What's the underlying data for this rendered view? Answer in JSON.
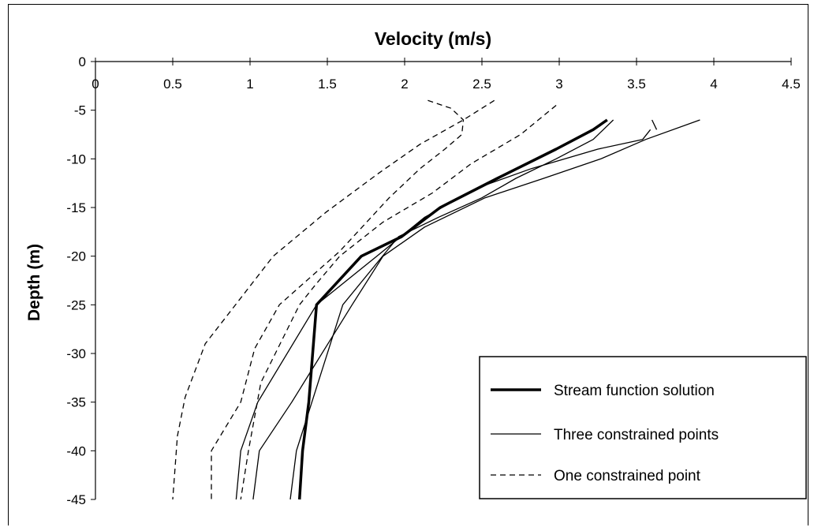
{
  "chart_data": {
    "type": "line",
    "title": "Velocity (m/s)",
    "xlabel": "",
    "ylabel": "Depth (m)",
    "xlim": [
      0,
      4.5
    ],
    "ylim": [
      -45,
      0
    ],
    "x_ticks": [
      "0",
      "0.5",
      "1",
      "1.5",
      "2",
      "2.5",
      "3",
      "3.5",
      "4",
      "4.5"
    ],
    "y_ticks": [
      "0",
      "-5",
      "-10",
      "-15",
      "-20",
      "-25",
      "-30",
      "-35",
      "-40",
      "-45"
    ],
    "x_axis_position": "top",
    "grid": false,
    "legend_position": "bottom-right",
    "legend": [
      {
        "label": "Stream function solution",
        "style": "thick-solid"
      },
      {
        "label": "Three constrained points",
        "style": "thin-solid"
      },
      {
        "label": "One constrained point",
        "style": "dashed"
      }
    ],
    "series": [
      {
        "style": "thick-solid",
        "color": "#000000",
        "x": [
          3.31,
          3.22,
          2.98,
          2.6,
          2.23,
          1.98,
          1.72,
          1.43,
          1.38,
          1.34,
          1.32
        ],
        "y": [
          -6,
          -7,
          -9,
          -12,
          -15,
          -18,
          -20,
          -25,
          -35,
          -40,
          -45
        ]
      },
      {
        "style": "thin-solid",
        "color": "#000000",
        "x": [
          3.35,
          3.22,
          2.98,
          2.72,
          2.5,
          2.22,
          1.96,
          1.6,
          1.4,
          1.3,
          1.26
        ],
        "y": [
          -6,
          -8,
          -10,
          -12,
          -14,
          -16,
          -18,
          -25,
          -35,
          -40,
          -45
        ]
      },
      {
        "style": "thin-solid",
        "color": "#000000",
        "x": [
          3.91,
          3.56,
          3.27,
          2.9,
          2.52,
          2.13,
          1.86,
          1.66,
          1.27,
          1.06,
          1.02
        ],
        "y": [
          -6,
          -8,
          -10,
          -12,
          -14,
          -17,
          -20,
          -25,
          -35,
          -40,
          -45
        ]
      },
      {
        "style": "thin-solid",
        "color": "#000000",
        "x": [
          3.59,
          3.54,
          3.25,
          2.82,
          2.47,
          2.13,
          1.82,
          1.43,
          1.05,
          0.94,
          0.91
        ],
        "y": [
          -7,
          -8,
          -9,
          -11,
          -13,
          -16,
          -20,
          -25,
          -35,
          -40,
          -45
        ]
      },
      {
        "style": "dashed",
        "color": "#000000",
        "x": [
          2.58,
          2.38,
          2.1,
          1.83,
          1.49,
          1.15,
          0.93,
          0.71,
          0.58,
          0.53,
          0.5
        ],
        "y": [
          -4,
          -6,
          -8.5,
          -11.5,
          -15.5,
          -20,
          -24.5,
          -29,
          -34.5,
          -38.5,
          -45
        ]
      },
      {
        "style": "dashed",
        "color": "#000000",
        "x": [
          2.98,
          2.75,
          2.43,
          2.18,
          1.86,
          1.58,
          1.42,
          1.32,
          1.07,
          0.99,
          0.94
        ],
        "y": [
          -4.5,
          -7.5,
          -10.5,
          -13.5,
          -16.5,
          -20,
          -23,
          -25,
          -33,
          -40,
          -45
        ]
      },
      {
        "style": "dashed",
        "color": "#000000",
        "x": [
          2.15,
          2.3,
          2.38,
          2.37,
          2.26,
          2.1,
          1.9,
          1.58,
          1.19,
          1.03,
          0.94,
          0.75,
          0.75
        ],
        "y": [
          -4,
          -4.8,
          -6,
          -7.5,
          -9,
          -11,
          -14,
          -19.5,
          -25,
          -29.5,
          -35,
          -40,
          -45
        ]
      },
      {
        "style": "thin-solid",
        "color": "#000000",
        "x": [
          3.6,
          3.63
        ],
        "y": [
          -6,
          -7
        ]
      }
    ]
  }
}
